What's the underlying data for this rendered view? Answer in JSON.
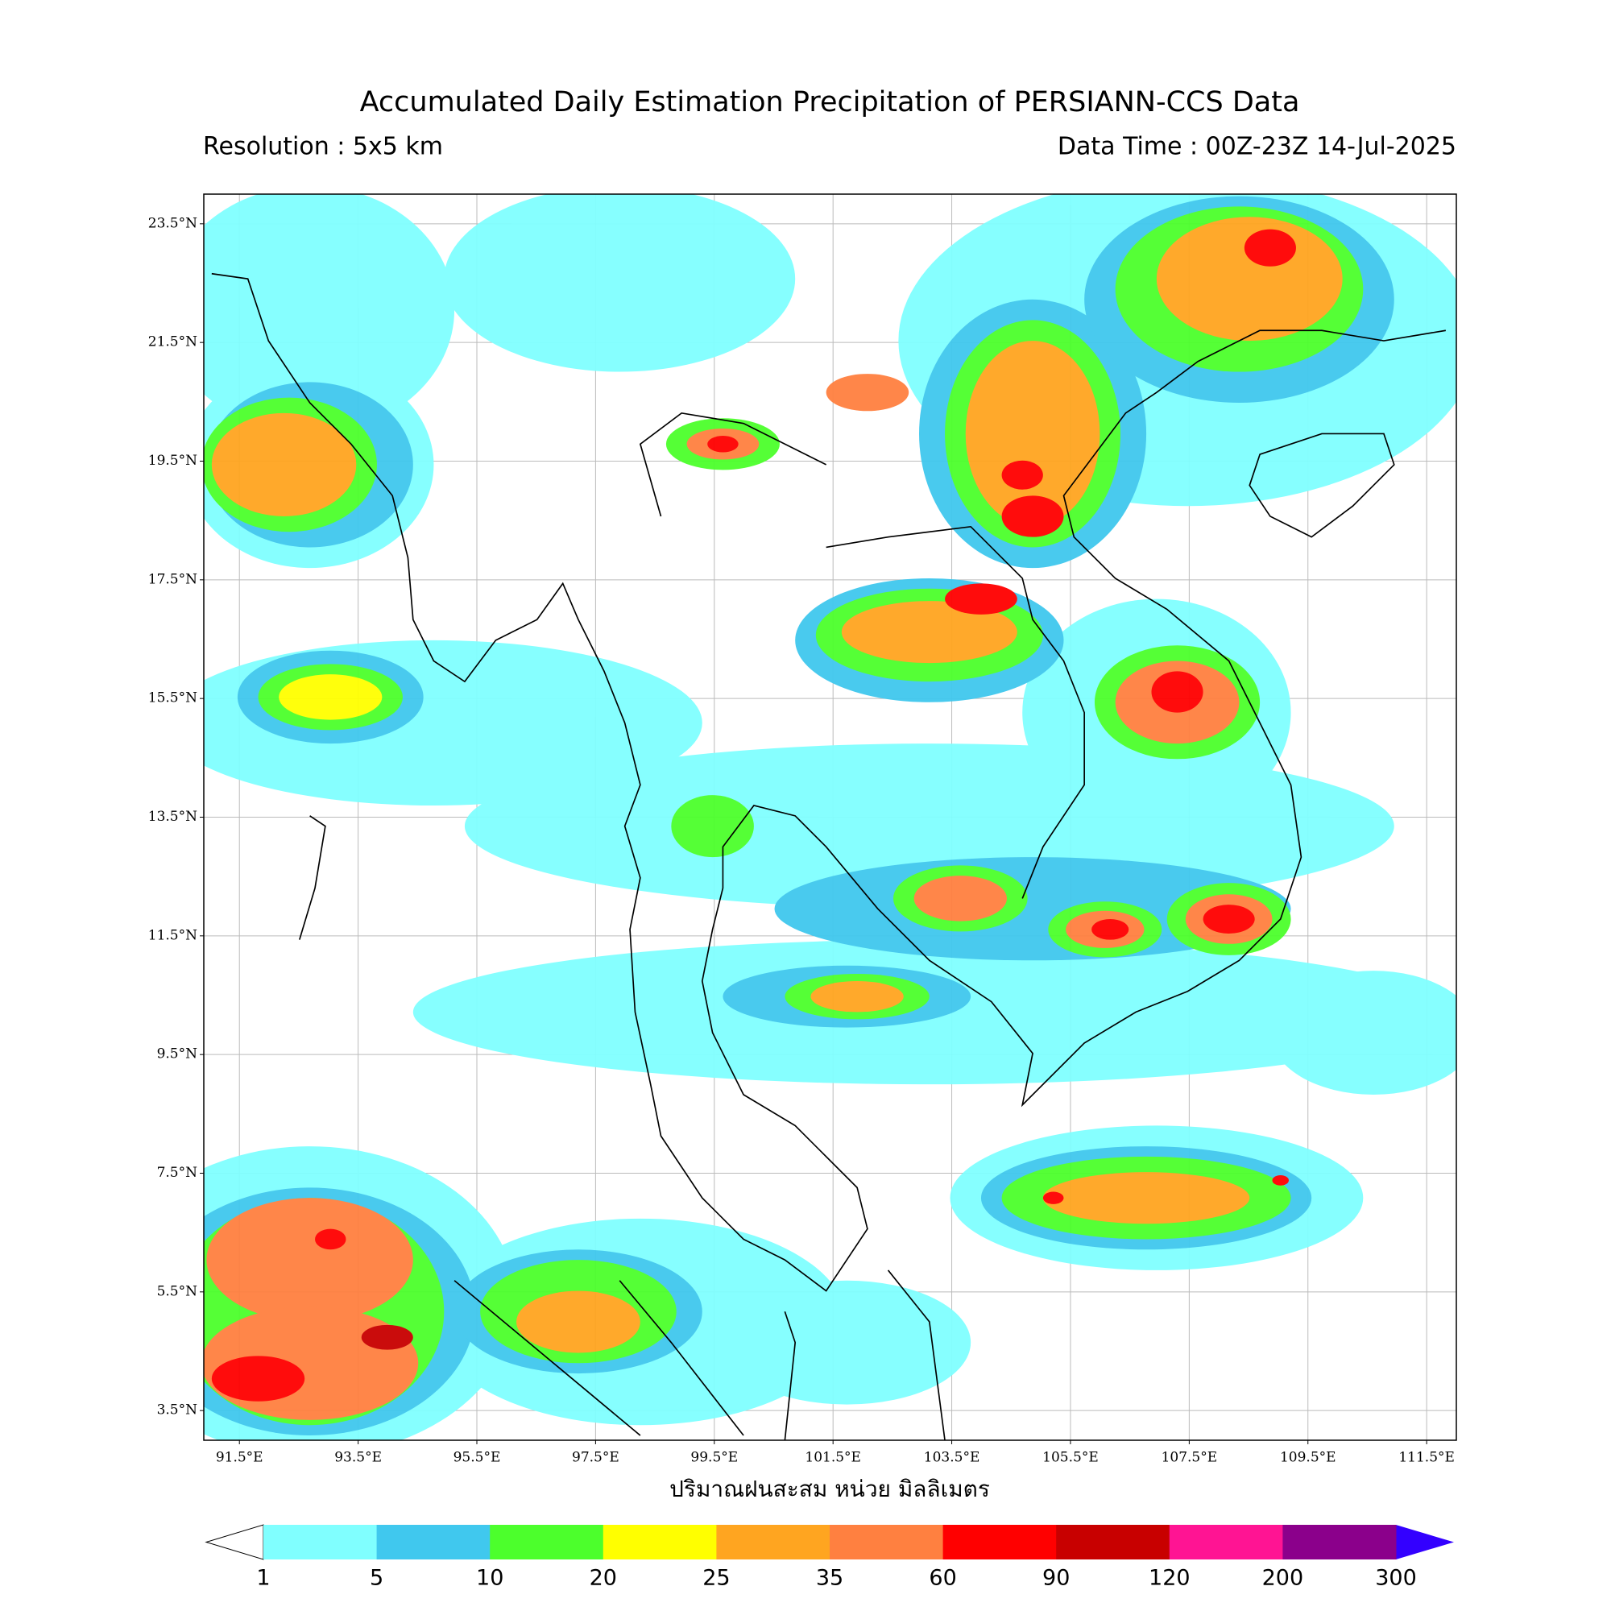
{
  "header": {
    "title": "Accumulated Daily Estimation Precipitation of PERSIANN-CCS Data",
    "resolution": "Resolution : 5x5 km",
    "data_time": "Data Time : 00Z-23Z 14-Jul-2025"
  },
  "map": {
    "lonlim": [
      90.9,
      112.0
    ],
    "latlim": [
      3.0,
      24.0
    ],
    "lat_ticks": [
      {
        "value": 23.5,
        "label": "23.5°N"
      },
      {
        "value": 21.5,
        "label": "21.5°N"
      },
      {
        "value": 19.5,
        "label": "19.5°N"
      },
      {
        "value": 17.5,
        "label": "17.5°N"
      },
      {
        "value": 15.5,
        "label": "15.5°N"
      },
      {
        "value": 13.5,
        "label": "13.5°N"
      },
      {
        "value": 11.5,
        "label": "11.5°N"
      },
      {
        "value": 9.5,
        "label": "9.5°N"
      },
      {
        "value": 7.5,
        "label": "7.5°N"
      },
      {
        "value": 5.5,
        "label": "5.5°N"
      },
      {
        "value": 3.5,
        "label": "3.5°N"
      }
    ],
    "lon_ticks": [
      {
        "value": 91.5,
        "label": "91.5°E"
      },
      {
        "value": 93.5,
        "label": "93.5°E"
      },
      {
        "value": 95.5,
        "label": "95.5°E"
      },
      {
        "value": 97.5,
        "label": "97.5°E"
      },
      {
        "value": 99.5,
        "label": "99.5°E"
      },
      {
        "value": 101.5,
        "label": "101.5°E"
      },
      {
        "value": 103.5,
        "label": "103.5°E"
      },
      {
        "value": 105.5,
        "label": "105.5°E"
      },
      {
        "value": 107.5,
        "label": "107.5°E"
      },
      {
        "value": 109.5,
        "label": "109.5°E"
      },
      {
        "value": 111.5,
        "label": "111.5°E"
      }
    ],
    "xlabel": "ปริมาณฝนสะสม หน่วย มิลลิเมตร"
  },
  "colorbar": {
    "levels": [
      1,
      5,
      10,
      20,
      25,
      35,
      60,
      90,
      120,
      200,
      300
    ],
    "colors": [
      "#80ffff",
      "#40c8ee",
      "#4cff2c",
      "#ffff00",
      "#ffa520",
      "#ff8040",
      "#ff0000",
      "#c80000",
      "#ff1493",
      "#8b008b"
    ],
    "under_color": "#ffffff",
    "over_color": "#3300ff"
  }
}
